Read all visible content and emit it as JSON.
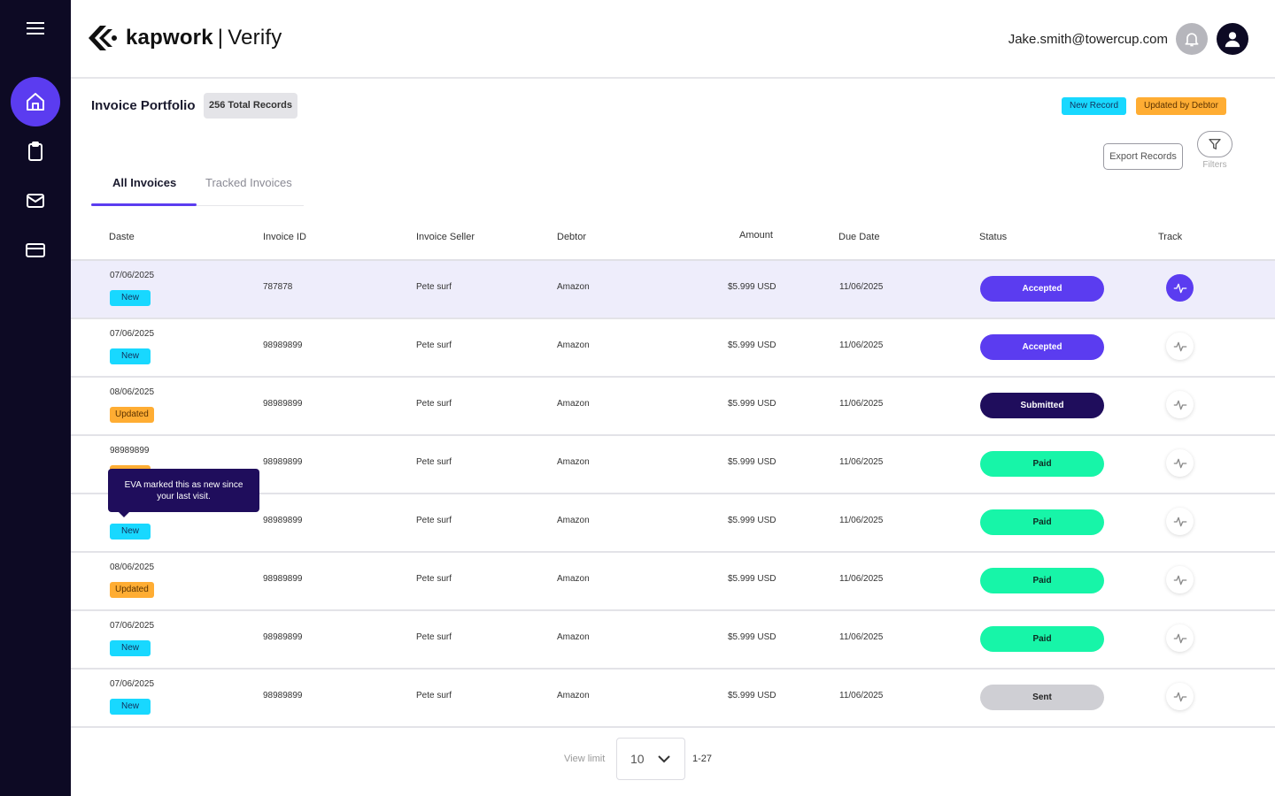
{
  "app": {
    "brand": "kapwork",
    "separator": "|",
    "product": "Verify"
  },
  "user": {
    "email": "Jake.smith@towercup.com"
  },
  "sidebar": {
    "items": [
      {
        "name": "home",
        "icon": "home-icon",
        "active": true
      },
      {
        "name": "clipboard",
        "icon": "clipboard-icon",
        "active": false
      },
      {
        "name": "mail",
        "icon": "mail-icon",
        "active": false
      },
      {
        "name": "card",
        "icon": "credit-card-icon",
        "active": false
      }
    ]
  },
  "portfolio": {
    "title": "Invoice Portfolio",
    "total_label": "256 Total Records",
    "legend_new": "New Record",
    "legend_updated": "Updated by Debtor",
    "export_label": "Export Records",
    "filters_label": "Filters"
  },
  "tabs": [
    {
      "label": "All Invoices",
      "active": true
    },
    {
      "label": "Tracked Invoices",
      "active": false
    }
  ],
  "table": {
    "columns": [
      "Daste",
      "Invoice ID",
      "Invoice Seller",
      "Debtor",
      "Amount",
      "Due Date",
      "Status",
      "Track"
    ],
    "rows": [
      {
        "date": "07/06/2025",
        "tag": "New",
        "tag_type": "new",
        "id": "787878",
        "seller": "Pete surf",
        "debtor": "Amazon",
        "amount": "$5.999 USD",
        "due": "11/06/2025",
        "status": "Accepted",
        "status_type": "accepted",
        "tracked": true
      },
      {
        "date": "07/06/2025",
        "tag": "New",
        "tag_type": "new",
        "id": "98989899",
        "seller": "Pete surf",
        "debtor": "Amazon",
        "amount": "$5.999 USD",
        "due": "11/06/2025",
        "status": "Accepted",
        "status_type": "accepted",
        "tracked": false
      },
      {
        "date": "08/06/2025",
        "tag": "Updated",
        "tag_type": "updated",
        "id": "98989899",
        "seller": "Pete surf",
        "debtor": "Amazon",
        "amount": "$5.999 USD",
        "due": "11/06/2025",
        "status": "Submitted",
        "status_type": "submitted",
        "tracked": false
      },
      {
        "date": "98989899",
        "tag": "",
        "tag_type": "updated",
        "id": "98989899",
        "seller": "Pete surf",
        "debtor": "Amazon",
        "amount": "$5.999 USD",
        "due": "11/06/2025",
        "status": "Paid",
        "status_type": "paid",
        "tracked": false
      },
      {
        "date": "",
        "tag": "New",
        "tag_type": "new",
        "id": "98989899",
        "seller": "Pete surf",
        "debtor": "Amazon",
        "amount": "$5.999 USD",
        "due": "11/06/2025",
        "status": "Paid",
        "status_type": "paid",
        "tracked": false
      },
      {
        "date": "08/06/2025",
        "tag": "Updated",
        "tag_type": "updated",
        "id": "98989899",
        "seller": "Pete surf",
        "debtor": "Amazon",
        "amount": "$5.999 USD",
        "due": "11/06/2025",
        "status": "Paid",
        "status_type": "paid",
        "tracked": false
      },
      {
        "date": "07/06/2025",
        "tag": "New",
        "tag_type": "new",
        "id": "98989899",
        "seller": "Pete surf",
        "debtor": "Amazon",
        "amount": "$5.999 USD",
        "due": "11/06/2025",
        "status": "Paid",
        "status_type": "paid",
        "tracked": false
      },
      {
        "date": "07/06/2025",
        "tag": "New",
        "tag_type": "new",
        "id": "98989899",
        "seller": "Pete surf",
        "debtor": "Amazon",
        "amount": "$5.999 USD",
        "due": "11/06/2025",
        "status": "Sent",
        "status_type": "sent",
        "tracked": false
      }
    ]
  },
  "tooltip": {
    "text_line1": "EVA marked this as new since",
    "text_line2": "your last visit."
  },
  "pagination": {
    "view_limit_label": "View limit",
    "limit_value": "10",
    "range": "1-27"
  },
  "colors": {
    "sidebar_bg": "#0d0a24",
    "accent": "#5b3cf0",
    "new_tag": "#18d8ff",
    "updated_tag": "#ffad33",
    "paid": "#17f5a8",
    "submitted": "#1f0d5c",
    "sent": "#cfcfd4"
  }
}
